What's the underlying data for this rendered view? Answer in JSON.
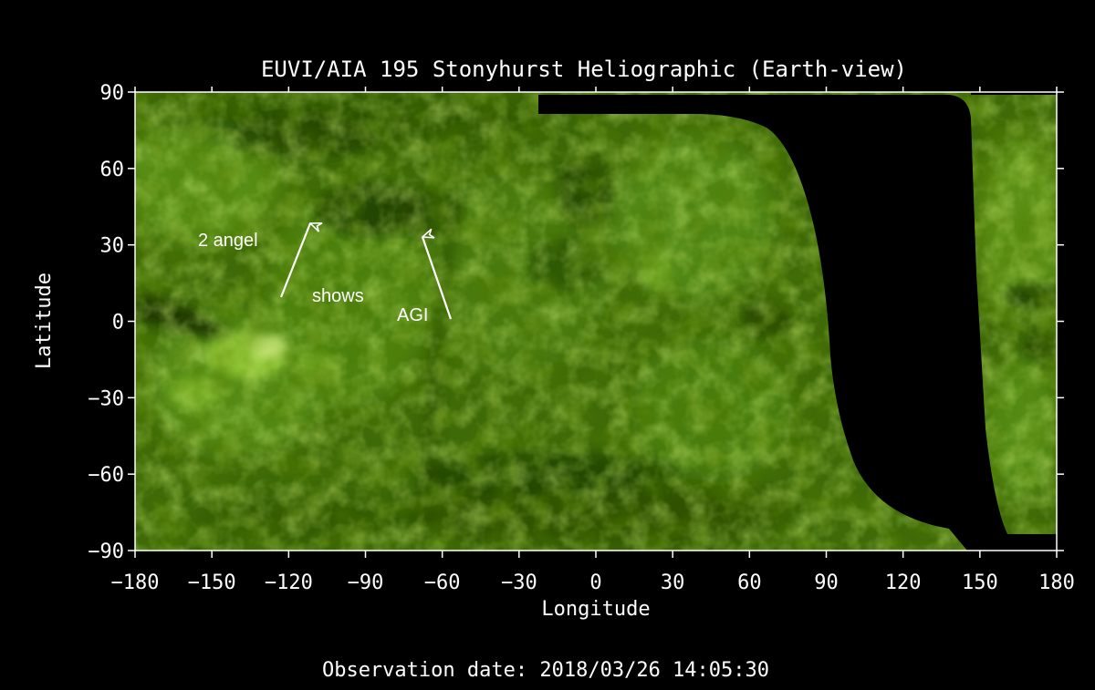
{
  "title": "EUVI/AIA 195 Stonyhurst Heliographic (Earth-view)",
  "xlabel": "Longitude",
  "ylabel": "Latitude",
  "observation": "Observation date: 2018/03/26 14:05:30",
  "x_ticks": [
    "−180",
    "−150",
    "−120",
    "−90",
    "−60",
    "−30",
    "0",
    "30",
    "60",
    "90",
    "120",
    "150",
    "180"
  ],
  "y_ticks": [
    "90",
    "60",
    "30",
    "0",
    "−30",
    "−60",
    "−90"
  ],
  "x_range": [
    -180,
    180
  ],
  "y_range": [
    -90,
    90
  ],
  "annotations": {
    "label_1": "2 angel",
    "label_2": "shows",
    "label_3": "AGI"
  },
  "colors": {
    "background": "#000000",
    "map_base": "#3f6a08",
    "map_light": "#8fc830",
    "map_dark": "#173300",
    "axes": "#ffffff"
  }
}
